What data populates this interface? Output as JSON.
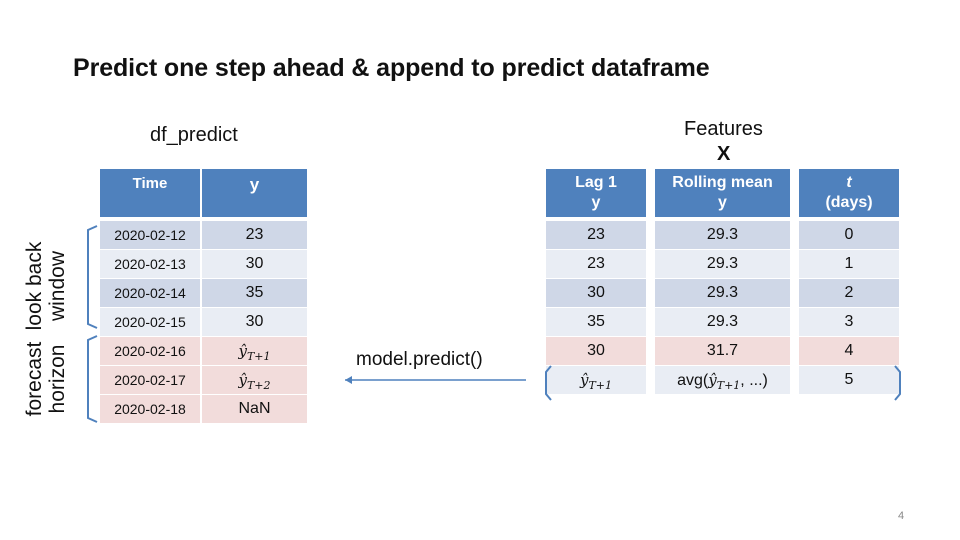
{
  "title": "Predict one step ahead & append to predict dataframe",
  "df_predict": {
    "label": "df_predict",
    "headers": {
      "time": "Time",
      "y": "y"
    },
    "rows": [
      {
        "time": "2020-02-12",
        "y": "23",
        "color": "dark"
      },
      {
        "time": "2020-02-13",
        "y": "30",
        "color": "light"
      },
      {
        "time": "2020-02-14",
        "y": "35",
        "color": "dark"
      },
      {
        "time": "2020-02-15",
        "y": "30",
        "color": "light"
      },
      {
        "time": "2020-02-16",
        "y": "ŷT+1",
        "color": "pink"
      },
      {
        "time": "2020-02-17",
        "y": "ŷT+2",
        "color": "pink"
      },
      {
        "time": "2020-02-18",
        "y": "NaN",
        "color": "pink"
      }
    ]
  },
  "brackets": {
    "look_back": [
      "look back",
      "window"
    ],
    "forecast": [
      "forecast",
      "horizon"
    ]
  },
  "arrow_label": "model.predict()",
  "features": {
    "label": "Features",
    "x_label": "X",
    "col_lag": {
      "header": [
        "Lag 1",
        "y"
      ],
      "values": [
        "23",
        "23",
        "30",
        "35",
        "30",
        "ŷT+1"
      ]
    },
    "col_roll": {
      "header": [
        "Rolling mean",
        "y"
      ],
      "values": [
        "29.3",
        "29.3",
        "29.3",
        "29.3",
        "31.7",
        "avg(ŷT+1, ...)"
      ]
    },
    "col_t": {
      "header": [
        "t",
        "(days)"
      ],
      "values": [
        "0",
        "1",
        "2",
        "3",
        "4",
        "5"
      ]
    },
    "row_colors": [
      "dark",
      "light",
      "dark",
      "light",
      "pink",
      "light"
    ]
  },
  "page_number": "4",
  "colors": {
    "header_blue": "#4f81bd",
    "row_dark": "#cfd7e7",
    "row_light": "#e9edf4",
    "row_pink": "#f2dcdb",
    "bracket": "#4f81bd",
    "arrow": "#4f81bd"
  }
}
